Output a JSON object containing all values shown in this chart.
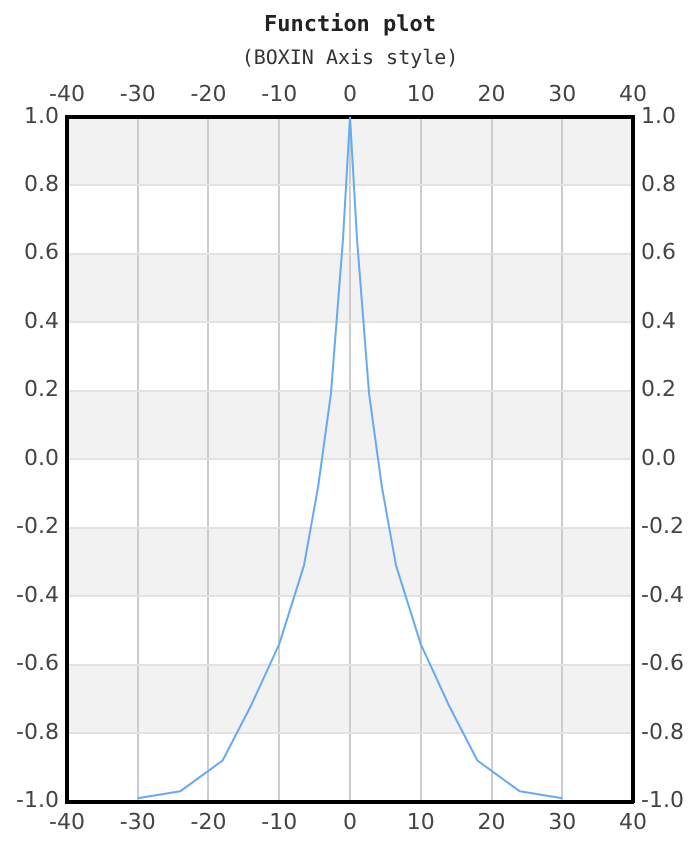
{
  "chart_data": {
    "type": "line",
    "title": "Function plot",
    "subtitle": "(BOXIN Axis style)",
    "series": [
      {
        "color": "#66aaf2",
        "x": [
          -30,
          -24,
          -18,
          -14,
          -10,
          -6.5,
          -4.5,
          -2.7,
          -1,
          0,
          1,
          2.7,
          4.5,
          6.5,
          10,
          14,
          18,
          24,
          30
        ],
        "values": [
          -0.99,
          -0.97,
          -0.88,
          -0.72,
          -0.54,
          -0.31,
          -0.08,
          0.19,
          0.64,
          1,
          0.64,
          0.19,
          -0.08,
          -0.31,
          -0.54,
          -0.72,
          -0.88,
          -0.97,
          -0.99
        ]
      }
    ],
    "xlim": [
      -40,
      40
    ],
    "xticks": [
      -40,
      -30,
      -20,
      -10,
      0,
      10,
      20,
      30,
      40
    ],
    "x2lim": [
      -40,
      40
    ],
    "x2ticks": [
      -40,
      -30,
      -20,
      -10,
      0,
      10,
      20,
      30,
      40
    ],
    "ylim": [
      -1,
      1
    ],
    "yticks": [
      {
        "value": -1,
        "label": "-1.0"
      },
      {
        "value": -0.8,
        "label": "-0.8"
      },
      {
        "value": -0.6,
        "label": "-0.6"
      },
      {
        "value": -0.4,
        "label": "-0.4"
      },
      {
        "value": -0.2,
        "label": "-0.2"
      },
      {
        "value": 0,
        "label": "0.0"
      },
      {
        "value": 0.2,
        "label": "0.2"
      },
      {
        "value": 0.4,
        "label": "0.4"
      },
      {
        "value": 0.6,
        "label": "0.6"
      },
      {
        "value": 0.8,
        "label": "0.8"
      },
      {
        "value": 1,
        "label": "1.0"
      }
    ],
    "y2lim": [
      -1,
      1
    ],
    "y2ticks": [
      {
        "value": -1,
        "label": "-1.0"
      },
      {
        "value": -0.8,
        "label": "-0.8"
      },
      {
        "value": -0.6,
        "label": "-0.6"
      },
      {
        "value": -0.4,
        "label": "-0.4"
      },
      {
        "value": -0.2,
        "label": "-0.2"
      },
      {
        "value": 0,
        "label": "0.0"
      },
      {
        "value": 0.2,
        "label": "0.2"
      },
      {
        "value": 0.4,
        "label": "0.4"
      },
      {
        "value": 0.6,
        "label": "0.6"
      },
      {
        "value": 0.8,
        "label": "0.8"
      },
      {
        "value": 1,
        "label": "1.0"
      }
    ],
    "bands": [
      {
        "axis": "y",
        "from": 0.8,
        "to": 1,
        "color": "#f2f2f2"
      },
      {
        "axis": "y",
        "from": 0.4,
        "to": 0.6,
        "color": "#f2f2f2"
      },
      {
        "axis": "y",
        "from": 0,
        "to": 0.2,
        "color": "#f2f2f2"
      },
      {
        "axis": "y",
        "from": -0.4,
        "to": -0.2,
        "color": "#f2f2f2"
      },
      {
        "axis": "y",
        "from": -0.8,
        "to": -0.6,
        "color": "#f2f2f2"
      }
    ],
    "grid": true,
    "legend": false,
    "marker": "none",
    "line_style": "solid"
  }
}
